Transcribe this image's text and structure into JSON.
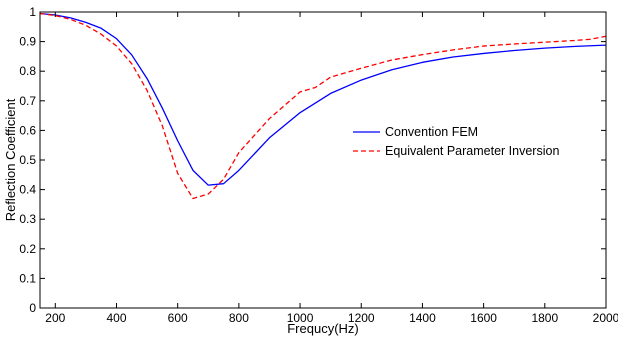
{
  "chart_data": {
    "type": "line",
    "title": "",
    "xlabel": "Frequcy(Hz)",
    "ylabel": "Reflection Coefficient",
    "xlim": [
      150,
      2000
    ],
    "ylim": [
      0,
      1
    ],
    "x_ticks": [
      200,
      400,
      600,
      800,
      1000,
      1200,
      1400,
      1600,
      1800,
      2000
    ],
    "y_ticks": [
      0,
      0.1,
      0.2,
      0.3,
      0.4,
      0.5,
      0.6,
      0.7,
      0.8,
      0.9,
      1
    ],
    "grid": false,
    "legend_position": "right",
    "series": [
      {
        "name": "Convention FEM",
        "color": "#0000ff",
        "style": "solid",
        "x": [
          150,
          200,
          250,
          300,
          350,
          400,
          450,
          500,
          550,
          600,
          650,
          700,
          750,
          800,
          900,
          1000,
          1100,
          1200,
          1300,
          1400,
          1500,
          1600,
          1700,
          1800,
          1900,
          2000
        ],
        "y": [
          0.995,
          0.99,
          0.98,
          0.965,
          0.945,
          0.91,
          0.855,
          0.775,
          0.675,
          0.565,
          0.465,
          0.415,
          0.42,
          0.465,
          0.575,
          0.66,
          0.725,
          0.77,
          0.805,
          0.83,
          0.848,
          0.86,
          0.87,
          0.878,
          0.884,
          0.888
        ]
      },
      {
        "name": "Equivalent Parameter Inversion",
        "color": "#ff0000",
        "style": "dashed",
        "x": [
          150,
          200,
          250,
          300,
          350,
          400,
          450,
          500,
          550,
          600,
          650,
          700,
          750,
          800,
          900,
          1000,
          1050,
          1100,
          1200,
          1300,
          1400,
          1500,
          1600,
          1700,
          1800,
          1900,
          1950,
          2000
        ],
        "y": [
          0.995,
          0.988,
          0.975,
          0.955,
          0.925,
          0.885,
          0.825,
          0.735,
          0.615,
          0.455,
          0.37,
          0.385,
          0.435,
          0.525,
          0.64,
          0.73,
          0.745,
          0.78,
          0.81,
          0.838,
          0.856,
          0.872,
          0.885,
          0.892,
          0.898,
          0.904,
          0.908,
          0.918
        ]
      }
    ]
  }
}
